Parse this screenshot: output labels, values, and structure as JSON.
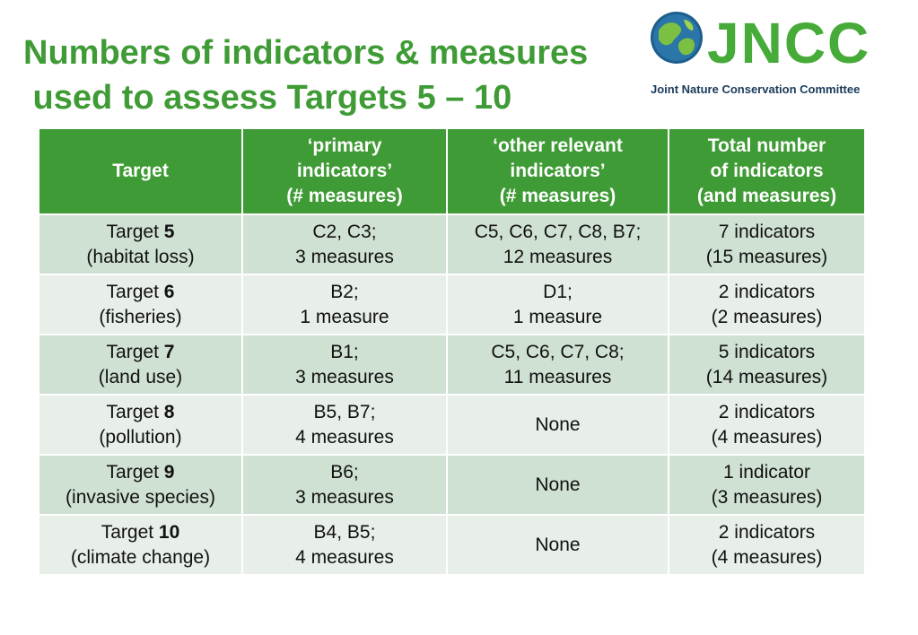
{
  "title": "Numbers of indicators & measures\n used to assess Targets 5 – 10",
  "logo": {
    "text": "JNCC",
    "subtitle": "Joint Nature Conservation Committee"
  },
  "colors": {
    "accent": "#3f9b35",
    "row_dark": "#cfe1d2",
    "row_light": "#e7efe8"
  },
  "table": {
    "headers": [
      {
        "lines": [
          "Target"
        ]
      },
      {
        "lines": [
          "‘primary",
          "indicators’",
          "(# measures)"
        ]
      },
      {
        "lines": [
          "‘other relevant",
          "indicators’",
          "(# measures)"
        ]
      },
      {
        "lines": [
          "Total number",
          "of indicators",
          "(and measures)"
        ]
      }
    ],
    "rows": [
      {
        "target_prefix": "Target ",
        "target_num": "5",
        "target_desc": "(habitat loss)",
        "primary": [
          "C2, C3;",
          "3 measures"
        ],
        "other": [
          "C5, C6, C7, C8, B7;",
          "12 measures"
        ],
        "total": [
          "7 indicators",
          "(15 measures)"
        ]
      },
      {
        "target_prefix": "Target ",
        "target_num": "6",
        "target_desc": "(fisheries)",
        "primary": [
          "B2;",
          "1 measure"
        ],
        "other": [
          "D1;",
          "1 measure"
        ],
        "total": [
          "2 indicators",
          "(2 measures)"
        ]
      },
      {
        "target_prefix": "Target ",
        "target_num": "7",
        "target_desc": "(land use)",
        "primary": [
          "B1;",
          "3 measures"
        ],
        "other": [
          "C5, C6, C7, C8;",
          "11 measures"
        ],
        "total": [
          "5 indicators",
          "(14 measures)"
        ]
      },
      {
        "target_prefix": "Target ",
        "target_num": "8",
        "target_desc": "(pollution)",
        "primary": [
          "B5, B7;",
          "4 measures"
        ],
        "other": [
          "None"
        ],
        "total": [
          "2 indicators",
          "(4 measures)"
        ]
      },
      {
        "target_prefix": "Target ",
        "target_num": "9",
        "target_desc": "(invasive species)",
        "primary": [
          "B6;",
          "3 measures"
        ],
        "other": [
          "None"
        ],
        "total": [
          "1 indicator",
          "(3 measures)"
        ]
      },
      {
        "target_prefix": "Target ",
        "target_num": "10",
        "target_desc": "(climate change)",
        "primary": [
          "B4, B5;",
          "4 measures"
        ],
        "other": [
          "None"
        ],
        "total": [
          "2 indicators",
          "(4 measures)"
        ]
      }
    ]
  }
}
